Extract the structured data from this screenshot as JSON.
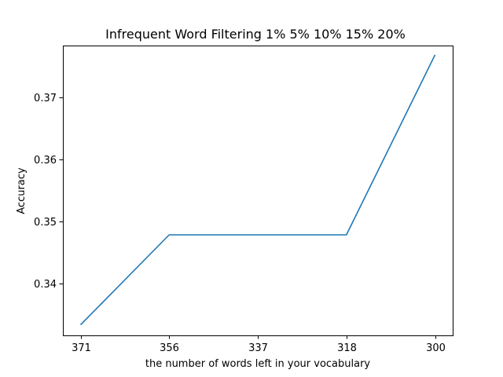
{
  "chart_data": {
    "type": "line",
    "title": "Infrequent Word Filtering 1% 5% 10% 15% 20%",
    "xlabel": "the number of words left in your vocabulary",
    "ylabel": "Accuracy",
    "categories": [
      "371",
      "356",
      "337",
      "318",
      "300"
    ],
    "series": [
      {
        "values": [
          0.3333,
          0.3478,
          0.3478,
          0.3478,
          0.3768
        ],
        "color": "#1f77b4"
      }
    ],
    "ylim": [
      0.3316,
      0.3783
    ],
    "yticks": [
      0.34,
      0.35,
      0.36,
      0.37
    ],
    "ytick_labels": [
      "0.34",
      "0.35",
      "0.36",
      "0.37"
    ],
    "grid": false,
    "legend": "none"
  }
}
